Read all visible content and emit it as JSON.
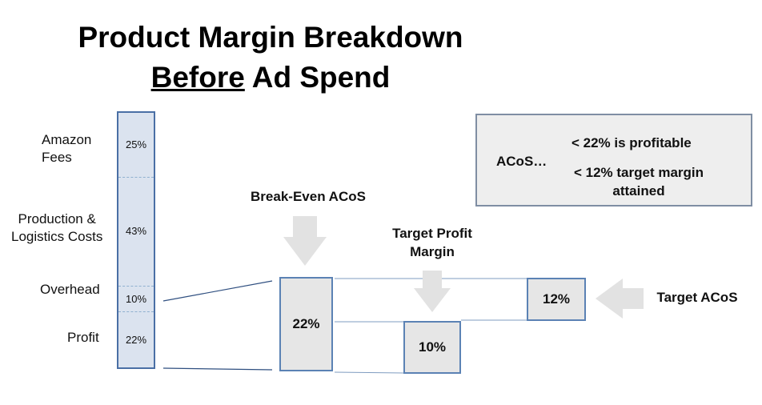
{
  "title": {
    "line1": "Product Margin Breakdown",
    "line2_underlined": "Before",
    "line2_rest": " Ad Spend"
  },
  "left_labels": {
    "amazon_fees": "Amazon\nFees",
    "production": "Production &\nLogistics Costs",
    "overhead": "Overhead",
    "profit": "Profit"
  },
  "stack": [
    {
      "name": "Amazon Fees",
      "value": 25,
      "label": "25%"
    },
    {
      "name": "Production & Logistics Costs",
      "value": 43,
      "label": "43%"
    },
    {
      "name": "Overhead",
      "value": 10,
      "label": "10%"
    },
    {
      "name": "Profit",
      "value": 22,
      "label": "22%"
    }
  ],
  "break_even": {
    "label": "Break-Even ACoS",
    "value": "22%"
  },
  "target_profit": {
    "label": "Target Profit\nMargin",
    "value": "10%"
  },
  "target_acos": {
    "label": "Target ACoS",
    "value": "12%"
  },
  "legend": {
    "prefix": "ACoS…",
    "line1": "< 22% is profitable",
    "line2": "< 12% target margin\nattained"
  },
  "colors": {
    "bar_fill": "#dbe3ef",
    "bar_border": "#4a6fa5",
    "box_fill": "#e6e6e6",
    "arrow": "#e2e2e2"
  }
}
